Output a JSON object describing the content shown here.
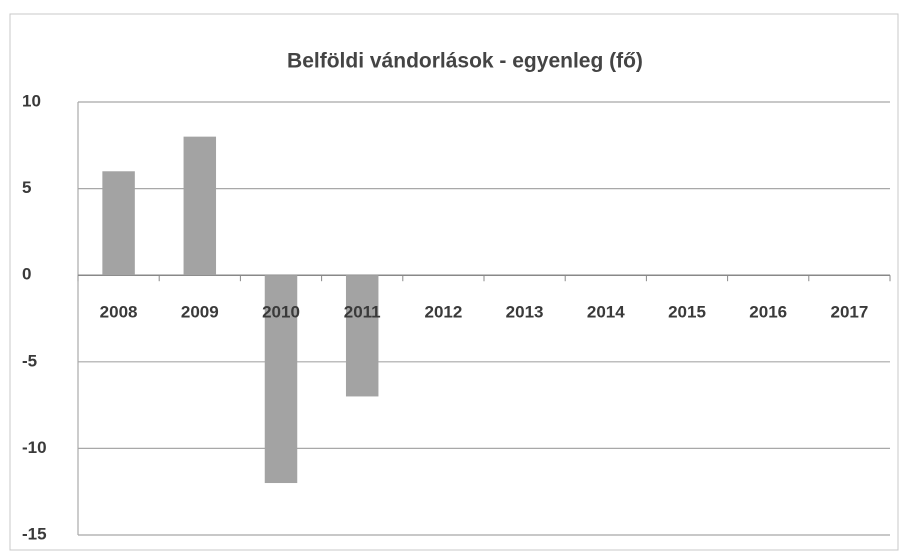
{
  "chart_data": {
    "type": "bar",
    "title": "Belföldi vándorlások - egyenleg (fő)",
    "categories": [
      "2008",
      "2009",
      "2010",
      "2011",
      "2012",
      "2013",
      "2014",
      "2015",
      "2016",
      "2017"
    ],
    "values": [
      6,
      8,
      -12,
      -7,
      null,
      null,
      null,
      null,
      null,
      null
    ],
    "color": "#a3a3a3",
    "ylim": [
      -15,
      10
    ],
    "yticks": [
      -15,
      -10,
      -5,
      0,
      5,
      10
    ],
    "grid": true
  }
}
